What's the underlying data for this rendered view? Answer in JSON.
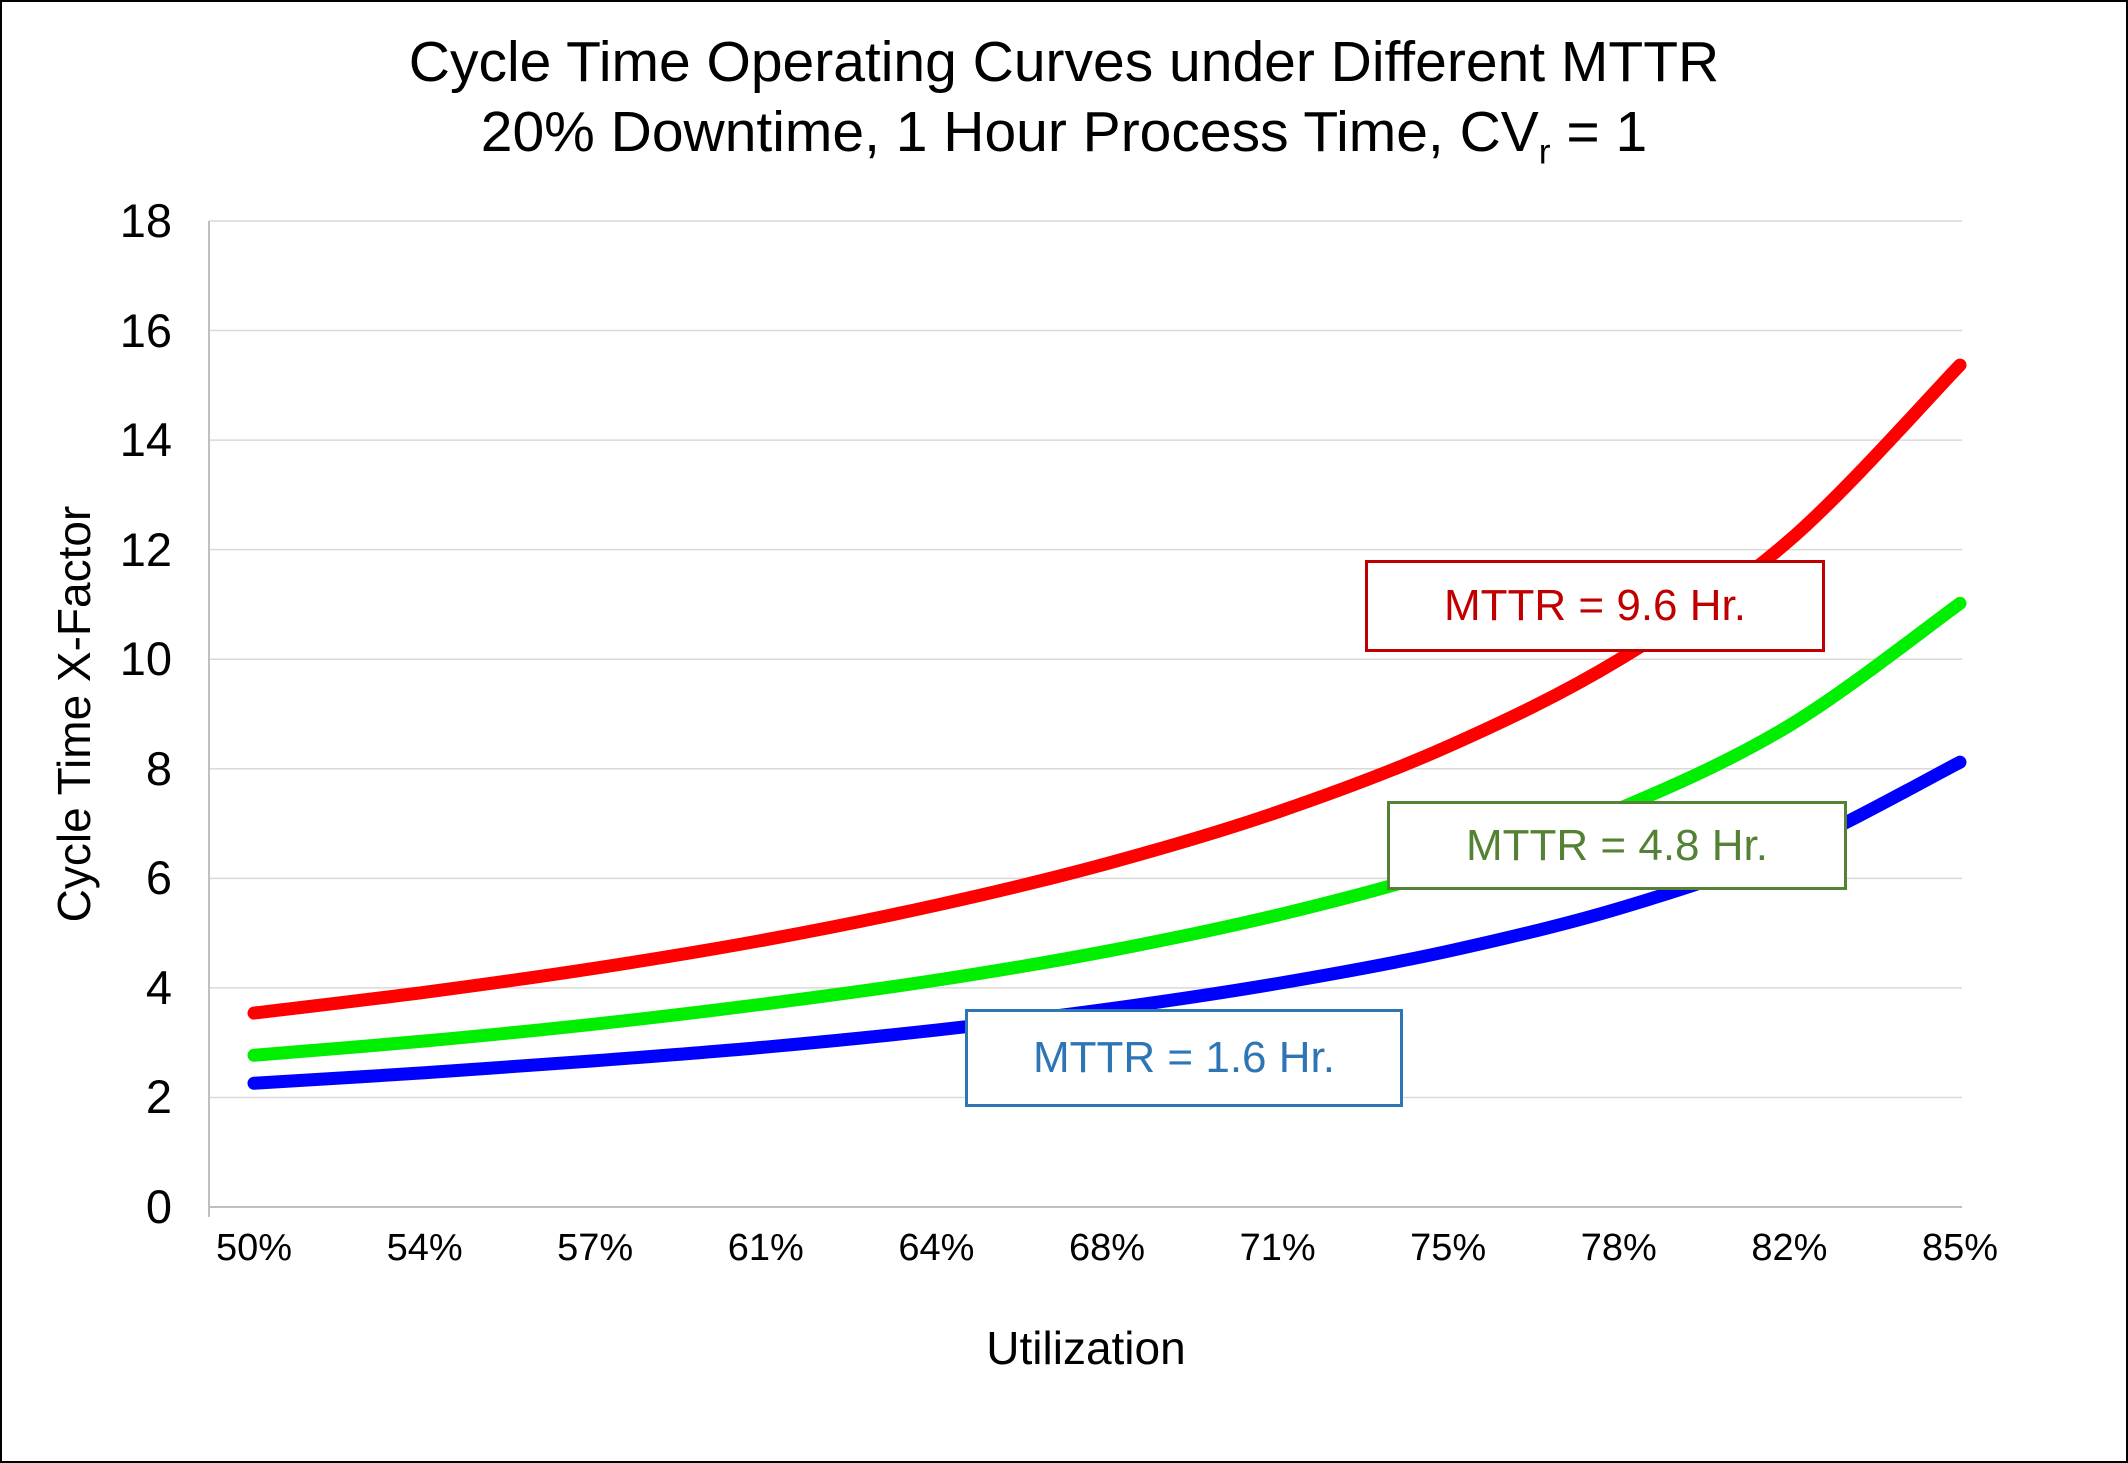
{
  "title": {
    "line1": "Cycle Time Operating Curves under Different MTTR",
    "line2_prefix": "20% Downtime, 1 Hour Process Time, CV",
    "line2_sub": "r",
    "line2_suffix": " = 1"
  },
  "chart_data": {
    "type": "line",
    "title": "Cycle Time Operating Curves under Different MTTR",
    "subtitle": "20% Downtime, 1 Hour Process Time, CVr = 1",
    "xlabel": "Utilization",
    "ylabel": "Cycle Time X-Factor",
    "x_tick_labels": [
      "50%",
      "54%",
      "57%",
      "61%",
      "64%",
      "68%",
      "71%",
      "75%",
      "78%",
      "82%",
      "85%"
    ],
    "x_values_percent": [
      50,
      53.5,
      57,
      60.5,
      64,
      67.5,
      71,
      74.5,
      78,
      81.5,
      85
    ],
    "ylim": [
      0,
      18
    ],
    "y_ticks": [
      0,
      2,
      4,
      6,
      8,
      10,
      12,
      14,
      16,
      18
    ],
    "grid": "horizontal-only",
    "gridline_color": "#D9D9D9",
    "axis_line_color": "#BFBFBF",
    "legend_position": "inline-label-boxes",
    "series": [
      {
        "name": "MTTR = 9.6 Hr.",
        "color": "#FF0000",
        "label_color": "#C00000",
        "values": [
          3.54,
          3.92,
          4.36,
          4.88,
          5.51,
          6.27,
          7.21,
          8.41,
          9.99,
          12.17,
          15.37
        ]
      },
      {
        "name": "MTTR = 4.8 Hr.",
        "color": "#00EE00",
        "label_color": "#548235",
        "values": [
          2.77,
          3.03,
          3.34,
          3.71,
          4.14,
          4.67,
          5.33,
          6.17,
          7.27,
          8.79,
          11.02
        ]
      },
      {
        "name": "MTTR = 1.6 Hr.",
        "color": "#0000FF",
        "label_color": "#2E75B6",
        "values": [
          2.26,
          2.45,
          2.67,
          2.92,
          3.23,
          3.61,
          4.08,
          4.67,
          5.45,
          6.53,
          8.12
        ]
      }
    ]
  }
}
